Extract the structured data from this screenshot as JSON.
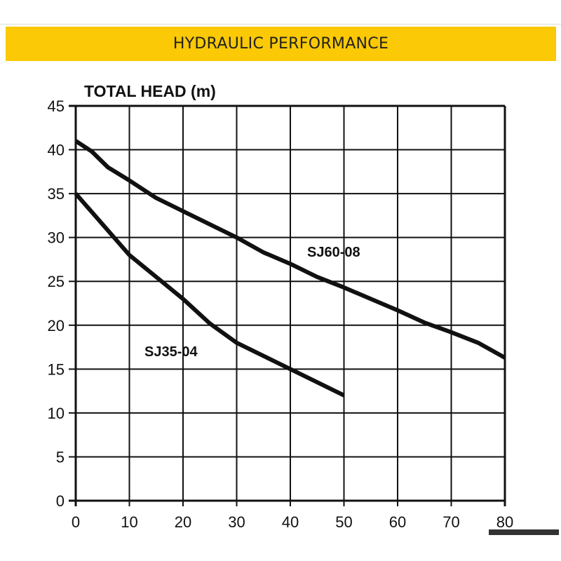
{
  "banner": {
    "title": "HYDRAULIC PERFORMANCE"
  },
  "colors": {
    "banner": "#fbc905",
    "line": "#111111"
  },
  "chart_data": {
    "type": "line",
    "title": "HYDRAULIC PERFORMANCE",
    "ylabel": "TOTAL HEAD (m)",
    "xlabel": "",
    "xlim": [
      0,
      80
    ],
    "ylim": [
      0,
      45
    ],
    "xticks": [
      "0",
      "10",
      "20",
      "30",
      "40",
      "50",
      "60",
      "70",
      "80"
    ],
    "yticks": [
      "0",
      "5",
      "10",
      "15",
      "20",
      "25",
      "30",
      "35",
      "40",
      "45"
    ],
    "grid": true,
    "series": [
      {
        "name": "SJ60-08",
        "x": [
          0,
          3,
          6,
          10,
          15,
          20,
          25,
          30,
          35,
          40,
          45,
          50,
          55,
          60,
          65,
          70,
          75,
          80
        ],
        "y": [
          41,
          39.8,
          38,
          36.5,
          34.5,
          33,
          31.5,
          30,
          28.3,
          27,
          25.5,
          24.3,
          23,
          21.7,
          20.3,
          19.2,
          18,
          16.3
        ]
      },
      {
        "name": "SJ35-04",
        "x": [
          0,
          5,
          10,
          15,
          20,
          25,
          30,
          35,
          40,
          45,
          50
        ],
        "y": [
          35,
          31.5,
          28,
          25.5,
          23,
          20.2,
          18,
          16.5,
          15,
          13.5,
          12
        ]
      }
    ]
  }
}
